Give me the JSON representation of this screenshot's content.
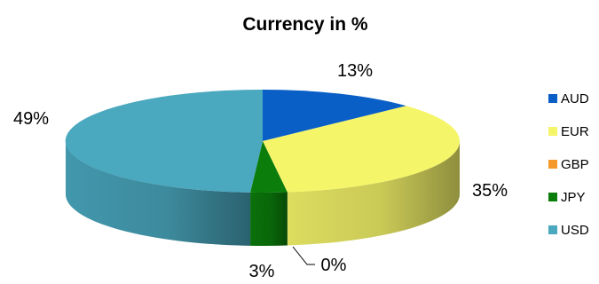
{
  "chart_data": {
    "type": "pie",
    "title": "Currency in %",
    "categories": [
      "AUD",
      "EUR",
      "GBP",
      "JPY",
      "USD"
    ],
    "values": [
      13,
      35,
      0,
      3,
      49
    ],
    "labels": [
      "13%",
      "35%",
      "0%",
      "3%",
      "49%"
    ],
    "colors": [
      "#0a5fc6",
      "#f5f56a",
      "#f59a2a",
      "#0b7d0b",
      "#4aa8bf"
    ],
    "legend_position": "right",
    "style": "3d"
  }
}
